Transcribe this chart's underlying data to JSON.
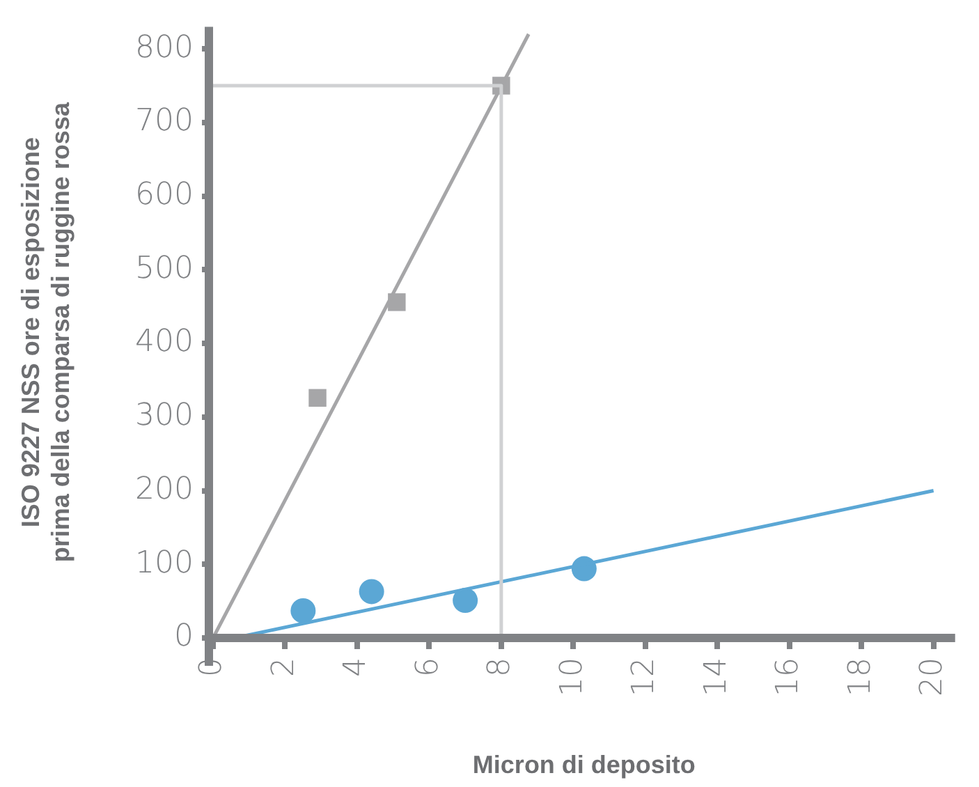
{
  "chart_data": {
    "type": "scatter",
    "xlabel": "Micron di deposito",
    "ylabel": "ISO 9227 NSS ore di esposizione\nprima della comparsa di ruggine rossa",
    "xlim": [
      0,
      20.6
    ],
    "xticks": [
      0,
      2,
      4,
      6,
      8,
      10,
      12,
      14,
      16,
      18,
      20
    ],
    "ylim": [
      0,
      830
    ],
    "yticks": [
      0,
      100,
      200,
      300,
      400,
      500,
      600,
      700,
      800
    ],
    "grid": false,
    "legend": false,
    "series": [
      {
        "type": "line",
        "color": "#d0d1d3",
        "x": [
          0,
          8,
          8
        ],
        "values": [
          750,
          750,
          0
        ],
        "marker": "none"
      },
      {
        "type": "line",
        "color": "#a6a6a8",
        "x": [
          0,
          8.76
        ],
        "values": [
          0,
          820
        ],
        "marker": "none"
      },
      {
        "type": "line",
        "color": "#5ba7d5",
        "x": [
          0.6,
          20
        ],
        "values": [
          0,
          200
        ],
        "marker": "none"
      },
      {
        "type": "scatter",
        "color": "#a6a6a8",
        "x": [
          2.9,
          5.1,
          8
        ],
        "values": [
          326,
          456,
          750
        ],
        "marker": "square"
      },
      {
        "type": "scatter",
        "color": "#5ba7d5",
        "x": [
          2.5,
          4.4,
          7,
          10.3
        ],
        "values": [
          37,
          63,
          51,
          94
        ],
        "marker": "circle"
      }
    ]
  }
}
